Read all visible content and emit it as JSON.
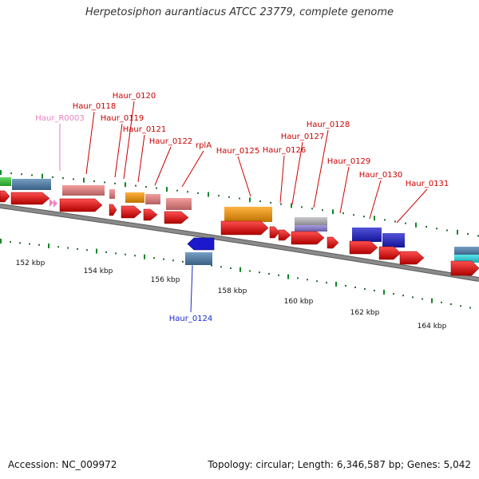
{
  "title": "Herpetosiphon aurantiacus ATCC 23779, complete genome",
  "footer": {
    "accession": "Accession: NC_009972",
    "summary": "Topology: circular; Length: 6,346,587 bp; Genes: 5,042"
  },
  "colors": {
    "cds_forward": "#e8101a",
    "cds_forward_light": "#f2888a",
    "rna": "#f47fc0",
    "label_red": "#cc0000",
    "label_pink": "#e67fbf",
    "label_blue": "#1a2acc",
    "tick_green": "#11882a",
    "backbone": "#8a8a8a"
  },
  "scale": {
    "unit": "kbp",
    "labels": [
      "152 kbp",
      "154 kbp",
      "156 kbp",
      "158 kbp",
      "160 kbp",
      "162 kbp",
      "164 kbp"
    ]
  },
  "genes": [
    {
      "label": "Haur_R0003",
      "color": "pink"
    },
    {
      "label": "Haur_0118",
      "color": "red"
    },
    {
      "label": "Haur_0119",
      "color": "red"
    },
    {
      "label": "Haur_0120",
      "color": "red"
    },
    {
      "label": "Haur_0121",
      "color": "red"
    },
    {
      "label": "Haur_0122",
      "color": "red"
    },
    {
      "label": "rplA",
      "color": "red"
    },
    {
      "label": "Haur_0124",
      "color": "blue"
    },
    {
      "label": "Haur_0125",
      "color": "red"
    },
    {
      "label": "Haur_0126",
      "color": "red"
    },
    {
      "label": "Haur_0127",
      "color": "red"
    },
    {
      "label": "Haur_0128",
      "color": "red"
    },
    {
      "label": "Haur_0129",
      "color": "red"
    },
    {
      "label": "Haur_0130",
      "color": "red"
    },
    {
      "label": "Haur_0131",
      "color": "red"
    }
  ],
  "feature_bars": [
    {
      "name": "bar-green",
      "color": "#33cc33"
    },
    {
      "name": "bar-steelblue-1",
      "color": "#4a7fb0"
    },
    {
      "name": "bar-salmon-1",
      "color": "#f08080"
    },
    {
      "name": "bar-salmon-2",
      "color": "#f08080"
    },
    {
      "name": "bar-orange-1",
      "color": "#ff9900"
    },
    {
      "name": "bar-salmon-3",
      "color": "#f08080"
    },
    {
      "name": "bar-salmon-4",
      "color": "#f08080"
    },
    {
      "name": "bar-orange-2",
      "color": "#ff9900"
    },
    {
      "name": "bar-grey",
      "color": "#b8b8c0"
    },
    {
      "name": "bar-lavender",
      "color": "#8a7ad8"
    },
    {
      "name": "bar-blue-1",
      "color": "#1a1acc"
    },
    {
      "name": "bar-blue-2",
      "color": "#1a1acc"
    },
    {
      "name": "bar-steelblue-2",
      "color": "#4a7fb0"
    },
    {
      "name": "bar-cyan",
      "color": "#22e0e8"
    },
    {
      "name": "bar-blue-rev",
      "color": "#1a1acc"
    },
    {
      "name": "bar-steelblue-rev",
      "color": "#4a7fb0"
    }
  ]
}
